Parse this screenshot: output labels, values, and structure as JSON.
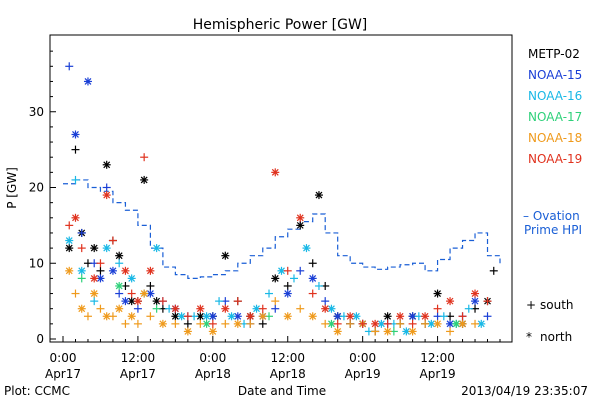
{
  "chart_data": {
    "type": "scatter",
    "title": "Hemispheric Power [GW]",
    "ylabel": "P [GW]",
    "xlabel": "Date and Time",
    "ylim": [
      0,
      40
    ],
    "yticks": [
      0,
      10,
      20,
      30
    ],
    "xlim_hours": [
      0,
      70
    ],
    "xticks": [
      {
        "hour": 0,
        "time": "0:00",
        "date": "Apr17"
      },
      {
        "hour": 12,
        "time": "12:00",
        "date": "Apr17"
      },
      {
        "hour": 24,
        "time": "0:00",
        "date": "Apr18"
      },
      {
        "hour": 36,
        "time": "12:00",
        "date": "Apr18"
      },
      {
        "hour": 48,
        "time": "0:00",
        "date": "Apr19"
      },
      {
        "hour": 60,
        "time": "12:00",
        "date": "Apr19"
      }
    ],
    "legend": [
      {
        "name": "METP-02",
        "color": "#000000"
      },
      {
        "name": "NOAA-15",
        "color": "#1a3fd6"
      },
      {
        "name": "NOAA-16",
        "color": "#19b8e6"
      },
      {
        "name": "NOAA-17",
        "color": "#2ed17a"
      },
      {
        "name": "NOAA-18",
        "color": "#ef9a1c"
      },
      {
        "name": "NOAA-19",
        "color": "#e0321e"
      }
    ],
    "ovation_label": [
      "– Ovation",
      "Prime HPI"
    ],
    "ovation_color": "#1a5fd6",
    "marker_legend": [
      {
        "symbol": "+",
        "label": "south"
      },
      {
        "symbol": "*",
        "label": "north"
      }
    ],
    "ovation": [
      [
        0,
        20.5
      ],
      [
        2,
        21
      ],
      [
        4,
        20
      ],
      [
        6,
        19.5
      ],
      [
        8,
        18
      ],
      [
        10,
        17
      ],
      [
        12,
        15
      ],
      [
        14,
        12
      ],
      [
        16,
        9.5
      ],
      [
        18,
        8.5
      ],
      [
        20,
        8
      ],
      [
        22,
        8.2
      ],
      [
        24,
        8.5
      ],
      [
        26,
        9
      ],
      [
        28,
        10
      ],
      [
        30,
        11
      ],
      [
        32,
        12
      ],
      [
        34,
        13.5
      ],
      [
        36,
        14.5
      ],
      [
        38,
        15.5
      ],
      [
        40,
        16.5
      ],
      [
        42,
        14
      ],
      [
        44,
        11
      ],
      [
        46,
        10
      ],
      [
        48,
        9.5
      ],
      [
        50,
        9.2
      ],
      [
        52,
        9.5
      ],
      [
        54,
        9.8
      ],
      [
        56,
        10
      ],
      [
        58,
        9
      ],
      [
        60,
        10.5
      ],
      [
        62,
        12
      ],
      [
        64,
        13
      ],
      [
        66,
        14
      ],
      [
        68,
        11
      ],
      [
        70,
        10
      ]
    ],
    "series": [
      {
        "name": "METP-02",
        "points": [
          [
            1,
            12
          ],
          [
            2,
            25
          ],
          [
            3,
            14
          ],
          [
            4,
            10
          ],
          [
            5,
            12
          ],
          [
            6,
            9
          ],
          [
            7,
            23
          ],
          [
            8,
            13
          ],
          [
            9,
            11
          ],
          [
            10,
            7
          ],
          [
            11,
            5
          ],
          [
            12,
            5
          ],
          [
            13,
            21
          ],
          [
            14,
            7
          ],
          [
            15,
            5
          ],
          [
            16,
            4
          ],
          [
            18,
            3
          ],
          [
            20,
            2
          ],
          [
            22,
            3
          ],
          [
            24,
            3
          ],
          [
            26,
            11
          ],
          [
            28,
            5
          ],
          [
            30,
            3
          ],
          [
            32,
            2
          ],
          [
            34,
            8
          ],
          [
            36,
            7
          ],
          [
            38,
            15
          ],
          [
            40,
            10
          ],
          [
            41,
            19
          ],
          [
            42,
            7
          ],
          [
            44,
            3
          ],
          [
            46,
            2
          ],
          [
            48,
            2
          ],
          [
            50,
            1
          ],
          [
            52,
            3
          ],
          [
            54,
            2
          ],
          [
            56,
            3
          ],
          [
            58,
            2
          ],
          [
            60,
            6
          ],
          [
            62,
            3
          ],
          [
            64,
            2
          ],
          [
            66,
            4
          ],
          [
            68,
            5
          ],
          [
            69,
            9
          ]
        ]
      },
      {
        "name": "NOAA-15",
        "points": [
          [
            1,
            36
          ],
          [
            2,
            27
          ],
          [
            3,
            14
          ],
          [
            4,
            34
          ],
          [
            5,
            10
          ],
          [
            6,
            8
          ],
          [
            7,
            20
          ],
          [
            8,
            9
          ],
          [
            9,
            6
          ],
          [
            10,
            5
          ],
          [
            12,
            4
          ],
          [
            14,
            6
          ],
          [
            16,
            5
          ],
          [
            18,
            4
          ],
          [
            20,
            3
          ],
          [
            24,
            3
          ],
          [
            26,
            5
          ],
          [
            28,
            3
          ],
          [
            30,
            2
          ],
          [
            32,
            3
          ],
          [
            34,
            4
          ],
          [
            36,
            6
          ],
          [
            38,
            9
          ],
          [
            40,
            8
          ],
          [
            42,
            5
          ],
          [
            44,
            3
          ],
          [
            46,
            2
          ],
          [
            48,
            2
          ],
          [
            52,
            2
          ],
          [
            56,
            3
          ],
          [
            60,
            3
          ],
          [
            62,
            2
          ],
          [
            64,
            3
          ],
          [
            66,
            5
          ],
          [
            68,
            3
          ]
        ]
      },
      {
        "name": "NOAA-16",
        "points": [
          [
            1,
            13
          ],
          [
            2,
            21
          ],
          [
            3,
            9
          ],
          [
            5,
            5
          ],
          [
            7,
            12
          ],
          [
            9,
            10
          ],
          [
            11,
            8
          ],
          [
            13,
            6
          ],
          [
            15,
            12
          ],
          [
            17,
            4
          ],
          [
            19,
            3
          ],
          [
            21,
            3
          ],
          [
            23,
            3
          ],
          [
            25,
            5
          ],
          [
            27,
            3
          ],
          [
            29,
            2
          ],
          [
            31,
            4
          ],
          [
            33,
            6
          ],
          [
            35,
            9
          ],
          [
            37,
            8
          ],
          [
            39,
            12
          ],
          [
            41,
            7
          ],
          [
            43,
            4
          ],
          [
            45,
            3
          ],
          [
            47,
            3
          ],
          [
            49,
            1
          ],
          [
            51,
            2
          ],
          [
            53,
            2
          ],
          [
            55,
            1
          ],
          [
            57,
            3
          ],
          [
            59,
            2
          ],
          [
            61,
            3
          ],
          [
            63,
            2
          ],
          [
            65,
            4
          ],
          [
            67,
            2
          ]
        ]
      },
      {
        "name": "NOAA-17",
        "points": [
          [
            3,
            8
          ],
          [
            9,
            7
          ],
          [
            15,
            4
          ],
          [
            23,
            2
          ],
          [
            33,
            3
          ],
          [
            43,
            2
          ],
          [
            53,
            1
          ],
          [
            63,
            2
          ]
        ]
      },
      {
        "name": "NOAA-18",
        "points": [
          [
            1,
            9
          ],
          [
            2,
            6
          ],
          [
            3,
            4
          ],
          [
            4,
            3
          ],
          [
            5,
            6
          ],
          [
            6,
            4
          ],
          [
            7,
            3
          ],
          [
            8,
            3
          ],
          [
            9,
            4
          ],
          [
            10,
            2
          ],
          [
            11,
            3
          ],
          [
            12,
            2
          ],
          [
            13,
            6
          ],
          [
            14,
            3
          ],
          [
            16,
            2
          ],
          [
            18,
            2
          ],
          [
            20,
            1
          ],
          [
            22,
            2
          ],
          [
            24,
            1
          ],
          [
            26,
            2
          ],
          [
            28,
            2
          ],
          [
            30,
            2
          ],
          [
            32,
            3
          ],
          [
            34,
            5
          ],
          [
            36,
            3
          ],
          [
            38,
            4
          ],
          [
            40,
            3
          ],
          [
            42,
            2
          ],
          [
            44,
            1
          ],
          [
            46,
            2
          ],
          [
            48,
            2
          ],
          [
            50,
            1
          ],
          [
            52,
            1
          ],
          [
            54,
            2
          ],
          [
            56,
            1
          ],
          [
            58,
            2
          ],
          [
            60,
            2
          ],
          [
            62,
            1
          ],
          [
            64,
            2
          ],
          [
            66,
            2
          ]
        ]
      },
      {
        "name": "NOAA-19",
        "points": [
          [
            1,
            15
          ],
          [
            2,
            16
          ],
          [
            3,
            12
          ],
          [
            5,
            8
          ],
          [
            6,
            10
          ],
          [
            7,
            19
          ],
          [
            8,
            13
          ],
          [
            10,
            9
          ],
          [
            11,
            6
          ],
          [
            12,
            5
          ],
          [
            13,
            24
          ],
          [
            14,
            9
          ],
          [
            16,
            5
          ],
          [
            18,
            4
          ],
          [
            20,
            3
          ],
          [
            22,
            4
          ],
          [
            24,
            2
          ],
          [
            26,
            4
          ],
          [
            28,
            5
          ],
          [
            30,
            3
          ],
          [
            32,
            4
          ],
          [
            34,
            22
          ],
          [
            36,
            9
          ],
          [
            38,
            16
          ],
          [
            40,
            6
          ],
          [
            42,
            4
          ],
          [
            44,
            2
          ],
          [
            46,
            3
          ],
          [
            48,
            2
          ],
          [
            50,
            2
          ],
          [
            52,
            2
          ],
          [
            54,
            3
          ],
          [
            56,
            2
          ],
          [
            58,
            3
          ],
          [
            60,
            4
          ],
          [
            62,
            5
          ],
          [
            64,
            3
          ],
          [
            66,
            6
          ],
          [
            68,
            5
          ]
        ]
      }
    ],
    "footer_left": "Plot: CCMC",
    "footer_right": "2013/04/19 23:35:07",
    "grid": false
  }
}
